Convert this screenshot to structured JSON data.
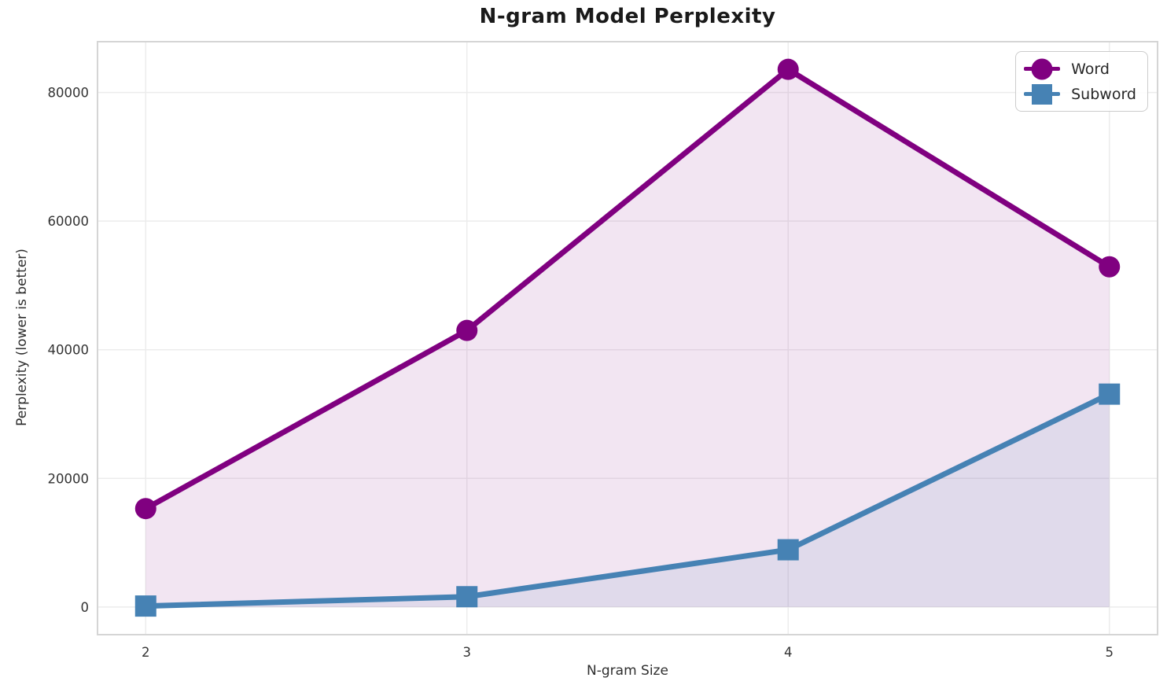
{
  "chart": {
    "title": "N-gram Model Perplexity",
    "xlabel": "N-gram Size",
    "ylabel": "Perplexity (lower is better)"
  },
  "legend": {
    "position": "upper right",
    "items": [
      {
        "label": "Word",
        "marker": "circle",
        "color": "#800080"
      },
      {
        "label": "Subword",
        "marker": "square",
        "color": "#4682B4"
      }
    ]
  },
  "chart_data": {
    "type": "line",
    "title": "N-gram Model Perplexity",
    "xlabel": "N-gram Size",
    "ylabel": "Perplexity (lower is better)",
    "x": [
      2,
      3,
      4,
      5
    ],
    "series": [
      {
        "name": "Word",
        "values": [
          15300,
          43000,
          83600,
          52900
        ],
        "color": "#800080",
        "marker": "circle",
        "fill_to_zero": true,
        "fill_opacity": 0.1
      },
      {
        "name": "Subword",
        "values": [
          150,
          1600,
          8900,
          33100
        ],
        "color": "#4682B4",
        "marker": "square",
        "fill_to_zero": true,
        "fill_opacity": 0.1
      }
    ],
    "xticks": [
      2,
      3,
      4,
      5
    ],
    "yticks": [
      0,
      20000,
      40000,
      60000,
      80000
    ],
    "xlim": [
      1.85,
      5.15
    ],
    "ylim": [
      -4300,
      87900
    ],
    "grid": true,
    "grid_color": "#ececec",
    "spine_color": "#d5d5d5",
    "tick_label_color": "#333333",
    "legend_position": "upper right"
  }
}
